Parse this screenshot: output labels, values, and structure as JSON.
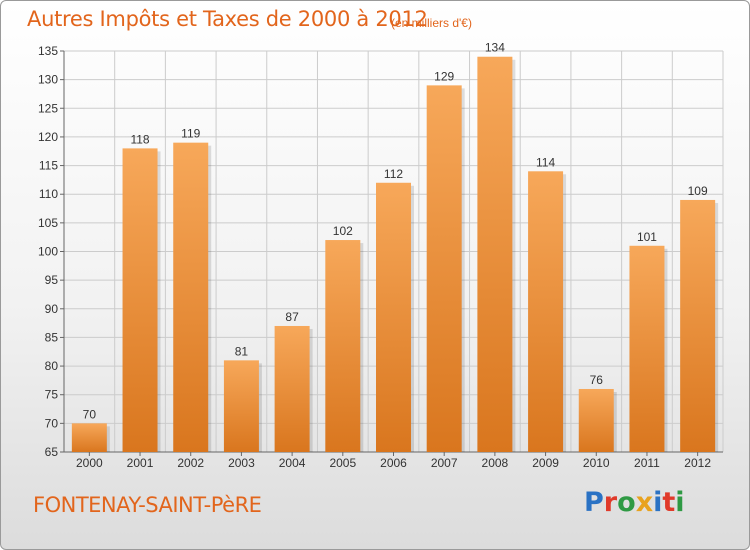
{
  "header": {
    "title": "Autres Impôts et Taxes de 2000 à 2012",
    "subtitle": "(en milliers d'€)"
  },
  "footer": {
    "place": "FONTENAY-SAINT-PèRE",
    "logo": [
      "P",
      "r",
      "o",
      "x",
      "i",
      "t",
      "i"
    ],
    "logo_colors": [
      "#2a72c4",
      "#e03a2a",
      "#2f9a44",
      "#e8a21e",
      "#2a72c4",
      "#e03a2a",
      "#2f9a44"
    ]
  },
  "colors": {
    "accent": "#e2651c",
    "bar_light": "#f7a85a",
    "bar_dark": "#d9761e",
    "grid": "#cccccc"
  },
  "chart_data": {
    "type": "bar",
    "title": "Autres Impôts et Taxes de 2000 à 2012",
    "subtitle": "(en milliers d'€)",
    "categories": [
      "2000",
      "2001",
      "2002",
      "2003",
      "2004",
      "2005",
      "2006",
      "2007",
      "2008",
      "2009",
      "2010",
      "2011",
      "2012"
    ],
    "values": [
      70,
      118,
      119,
      81,
      87,
      102,
      112,
      129,
      134,
      114,
      76,
      101,
      109
    ],
    "ylim": [
      65,
      135
    ],
    "yticks": [
      65,
      70,
      75,
      80,
      85,
      90,
      95,
      100,
      105,
      110,
      115,
      120,
      125,
      130,
      135
    ],
    "xlabel": "",
    "ylabel": "",
    "grid": true,
    "legend": "none"
  }
}
